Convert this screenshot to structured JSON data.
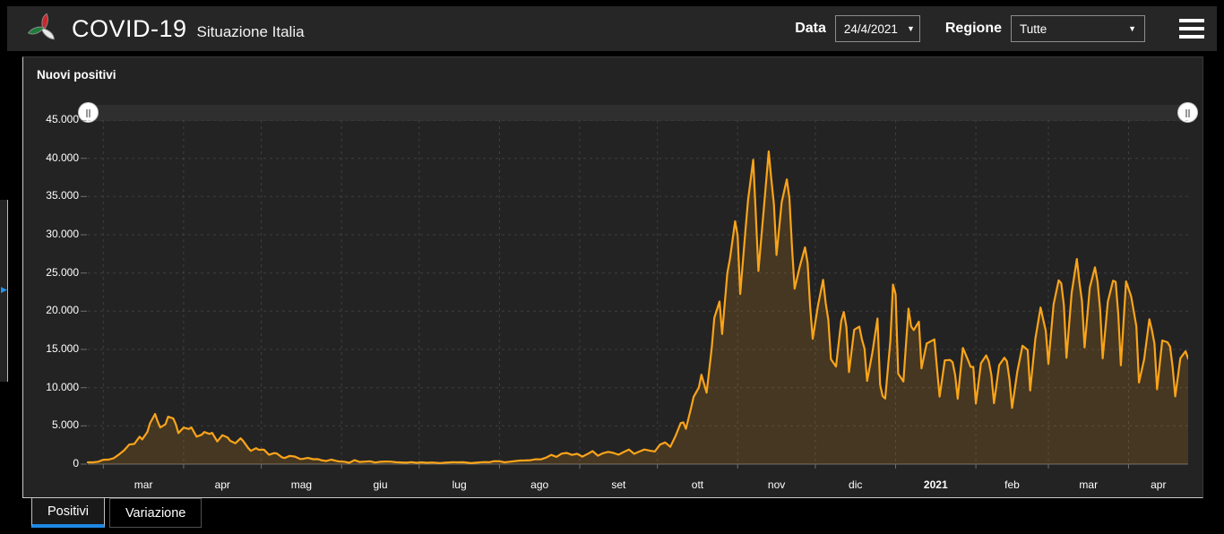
{
  "header": {
    "title": "COVID-19",
    "subtitle": "Situazione Italia",
    "date_label": "Data",
    "date_value": "24/4/2021",
    "region_label": "Regione",
    "region_value": "Tutte"
  },
  "icons": {
    "chevron_down": "▼",
    "expand_arrow": "▶"
  },
  "panel": {
    "title": "Nuovi positivi"
  },
  "tabs": [
    {
      "label": "Positivi",
      "active": true
    },
    {
      "label": "Variazione",
      "active": false
    }
  ],
  "colors": {
    "accent_orange": "#faa41a",
    "accent_blue": "#1e88e5",
    "header_bg": "#262626",
    "panel_bg": "#232323",
    "logo_red": "#c9252c",
    "logo_green": "#1e7b3a",
    "logo_white": "#e8e8e8"
  },
  "chart_data": {
    "type": "area",
    "title": "Nuovi positivi",
    "ylabel": "",
    "xlabel": "",
    "ylim": [
      0,
      45000
    ],
    "ytick_step": 5000,
    "ytick_labels": [
      "0",
      "5.000",
      "10.000",
      "15.000",
      "20.000",
      "25.000",
      "30.000",
      "35.000",
      "40.000",
      "45.000"
    ],
    "xtick_labels": [
      "mar",
      "apr",
      "mag",
      "giu",
      "lug",
      "ago",
      "set",
      "ott",
      "nov",
      "dic",
      "2021",
      "feb",
      "mar",
      "apr"
    ],
    "xtick_bold_index": 10,
    "grid": true,
    "legend": "none",
    "x_total_days": 425,
    "month_start_days": [
      6,
      37,
      67,
      98,
      128,
      159,
      190,
      220,
      251,
      281,
      312,
      343,
      371,
      402
    ],
    "series": [
      {
        "name": "Nuovi positivi",
        "color": "#faa41a",
        "points": [
          [
            0,
            230
          ],
          [
            2,
            240
          ],
          [
            4,
            320
          ],
          [
            6,
            570
          ],
          [
            8,
            590
          ],
          [
            10,
            770
          ],
          [
            12,
            1250
          ],
          [
            14,
            1800
          ],
          [
            16,
            2550
          ],
          [
            18,
            2650
          ],
          [
            20,
            3590
          ],
          [
            21,
            3230
          ],
          [
            23,
            4210
          ],
          [
            24,
            5320
          ],
          [
            26,
            6560
          ],
          [
            27,
            5560
          ],
          [
            28,
            4790
          ],
          [
            30,
            5210
          ],
          [
            31,
            6200
          ],
          [
            33,
            5970
          ],
          [
            34,
            5220
          ],
          [
            35,
            4050
          ],
          [
            37,
            4780
          ],
          [
            39,
            4590
          ],
          [
            40,
            4800
          ],
          [
            42,
            3600
          ],
          [
            44,
            3840
          ],
          [
            45,
            4200
          ],
          [
            47,
            3950
          ],
          [
            48,
            4090
          ],
          [
            50,
            2970
          ],
          [
            52,
            3790
          ],
          [
            54,
            3490
          ],
          [
            55,
            3050
          ],
          [
            57,
            2730
          ],
          [
            59,
            3370
          ],
          [
            60,
            3020
          ],
          [
            62,
            2090
          ],
          [
            63,
            1740
          ],
          [
            65,
            2090
          ],
          [
            66,
            1870
          ],
          [
            68,
            1900
          ],
          [
            70,
            1220
          ],
          [
            72,
            1440
          ],
          [
            73,
            1400
          ],
          [
            75,
            890
          ],
          [
            76,
            800
          ],
          [
            78,
            1080
          ],
          [
            80,
            990
          ],
          [
            82,
            670
          ],
          [
            83,
            675
          ],
          [
            85,
            810
          ],
          [
            87,
            640
          ],
          [
            89,
            650
          ],
          [
            90,
            530
          ],
          [
            92,
            400
          ],
          [
            94,
            590
          ],
          [
            96,
            420
          ],
          [
            97,
            355
          ],
          [
            99,
            320
          ],
          [
            101,
            180
          ],
          [
            103,
            520
          ],
          [
            105,
            280
          ],
          [
            107,
            330
          ],
          [
            109,
            380
          ],
          [
            111,
            210
          ],
          [
            113,
            300
          ],
          [
            115,
            340
          ],
          [
            117,
            330
          ],
          [
            119,
            250
          ],
          [
            121,
            220
          ],
          [
            123,
            190
          ],
          [
            125,
            255
          ],
          [
            127,
            175
          ],
          [
            129,
            240
          ],
          [
            131,
            180
          ],
          [
            133,
            210
          ],
          [
            136,
            140
          ],
          [
            138,
            190
          ],
          [
            141,
            250
          ],
          [
            143,
            230
          ],
          [
            145,
            250
          ],
          [
            148,
            130
          ],
          [
            150,
            190
          ],
          [
            153,
            275
          ],
          [
            155,
            250
          ],
          [
            157,
            390
          ],
          [
            159,
            380
          ],
          [
            161,
            240
          ],
          [
            163,
            320
          ],
          [
            165,
            400
          ],
          [
            167,
            470
          ],
          [
            169,
            480
          ],
          [
            171,
            520
          ],
          [
            173,
            630
          ],
          [
            175,
            620
          ],
          [
            177,
            840
          ],
          [
            179,
            1210
          ],
          [
            181,
            950
          ],
          [
            183,
            1370
          ],
          [
            185,
            1460
          ],
          [
            187,
            1210
          ],
          [
            189,
            1350
          ],
          [
            191,
            980
          ],
          [
            193,
            1330
          ],
          [
            195,
            1700
          ],
          [
            197,
            1100
          ],
          [
            199,
            1430
          ],
          [
            201,
            1600
          ],
          [
            203,
            1460
          ],
          [
            205,
            1230
          ],
          [
            207,
            1580
          ],
          [
            209,
            1910
          ],
          [
            211,
            1350
          ],
          [
            213,
            1640
          ],
          [
            215,
            1910
          ],
          [
            217,
            1770
          ],
          [
            219,
            1650
          ],
          [
            221,
            2550
          ],
          [
            223,
            2840
          ],
          [
            225,
            2260
          ],
          [
            227,
            3680
          ],
          [
            229,
            5370
          ],
          [
            230,
            5460
          ],
          [
            231,
            4620
          ],
          [
            233,
            7330
          ],
          [
            234,
            8800
          ],
          [
            236,
            10010
          ],
          [
            237,
            11700
          ],
          [
            239,
            9340
          ],
          [
            241,
            15200
          ],
          [
            242,
            19140
          ],
          [
            244,
            21270
          ],
          [
            245,
            17010
          ],
          [
            247,
            24990
          ],
          [
            248,
            26830
          ],
          [
            250,
            31760
          ],
          [
            251,
            29910
          ],
          [
            252,
            22250
          ],
          [
            254,
            30550
          ],
          [
            255,
            34500
          ],
          [
            257,
            39810
          ],
          [
            258,
            32620
          ],
          [
            259,
            25270
          ],
          [
            261,
            32960
          ],
          [
            263,
            40900
          ],
          [
            264,
            37250
          ],
          [
            265,
            33980
          ],
          [
            266,
            27350
          ],
          [
            268,
            34280
          ],
          [
            270,
            37240
          ],
          [
            271,
            34770
          ],
          [
            272,
            28340
          ],
          [
            273,
            22930
          ],
          [
            275,
            25850
          ],
          [
            277,
            28350
          ],
          [
            278,
            26320
          ],
          [
            279,
            20640
          ],
          [
            280,
            16380
          ],
          [
            282,
            20710
          ],
          [
            284,
            24100
          ],
          [
            285,
            21050
          ],
          [
            286,
            18890
          ],
          [
            287,
            13720
          ],
          [
            289,
            12760
          ],
          [
            291,
            18730
          ],
          [
            292,
            19900
          ],
          [
            293,
            17940
          ],
          [
            294,
            12030
          ],
          [
            296,
            17570
          ],
          [
            298,
            17990
          ],
          [
            299,
            16310
          ],
          [
            300,
            15100
          ],
          [
            301,
            10870
          ],
          [
            303,
            14520
          ],
          [
            305,
            19040
          ],
          [
            306,
            10410
          ],
          [
            307,
            8910
          ],
          [
            308,
            8580
          ],
          [
            310,
            16200
          ],
          [
            311,
            23480
          ],
          [
            312,
            22210
          ],
          [
            313,
            11830
          ],
          [
            315,
            10800
          ],
          [
            317,
            20330
          ],
          [
            318,
            18020
          ],
          [
            319,
            17530
          ],
          [
            321,
            18630
          ],
          [
            322,
            12530
          ],
          [
            324,
            15770
          ],
          [
            326,
            16140
          ],
          [
            327,
            16310
          ],
          [
            328,
            12540
          ],
          [
            329,
            8820
          ],
          [
            331,
            13570
          ],
          [
            333,
            13630
          ],
          [
            334,
            13330
          ],
          [
            335,
            11630
          ],
          [
            336,
            8560
          ],
          [
            338,
            15200
          ],
          [
            340,
            13570
          ],
          [
            341,
            12720
          ],
          [
            342,
            12710
          ],
          [
            343,
            7920
          ],
          [
            345,
            13190
          ],
          [
            347,
            14220
          ],
          [
            348,
            13440
          ],
          [
            349,
            11640
          ],
          [
            350,
            7970
          ],
          [
            352,
            12950
          ],
          [
            354,
            13910
          ],
          [
            355,
            13450
          ],
          [
            356,
            11070
          ],
          [
            357,
            7350
          ],
          [
            359,
            12070
          ],
          [
            361,
            15480
          ],
          [
            363,
            14930
          ],
          [
            364,
            9630
          ],
          [
            366,
            16420
          ],
          [
            368,
            20490
          ],
          [
            369,
            18920
          ],
          [
            370,
            17440
          ],
          [
            371,
            13110
          ],
          [
            373,
            20880
          ],
          [
            375,
            24030
          ],
          [
            376,
            23640
          ],
          [
            377,
            20760
          ],
          [
            378,
            13900
          ],
          [
            380,
            22410
          ],
          [
            382,
            26820
          ],
          [
            383,
            23830
          ],
          [
            384,
            21310
          ],
          [
            385,
            15260
          ],
          [
            387,
            23060
          ],
          [
            389,
            25740
          ],
          [
            390,
            23840
          ],
          [
            391,
            20160
          ],
          [
            392,
            13840
          ],
          [
            394,
            21270
          ],
          [
            396,
            23990
          ],
          [
            397,
            23840
          ],
          [
            398,
            19610
          ],
          [
            399,
            12910
          ],
          [
            401,
            23900
          ],
          [
            403,
            21930
          ],
          [
            405,
            18020
          ],
          [
            406,
            10680
          ],
          [
            408,
            13710
          ],
          [
            410,
            18940
          ],
          [
            411,
            17570
          ],
          [
            412,
            15750
          ],
          [
            413,
            9790
          ],
          [
            415,
            16170
          ],
          [
            417,
            15940
          ],
          [
            418,
            15370
          ],
          [
            419,
            12690
          ],
          [
            420,
            8860
          ],
          [
            422,
            13840
          ],
          [
            424,
            14760
          ],
          [
            425,
            13810
          ]
        ]
      }
    ]
  }
}
